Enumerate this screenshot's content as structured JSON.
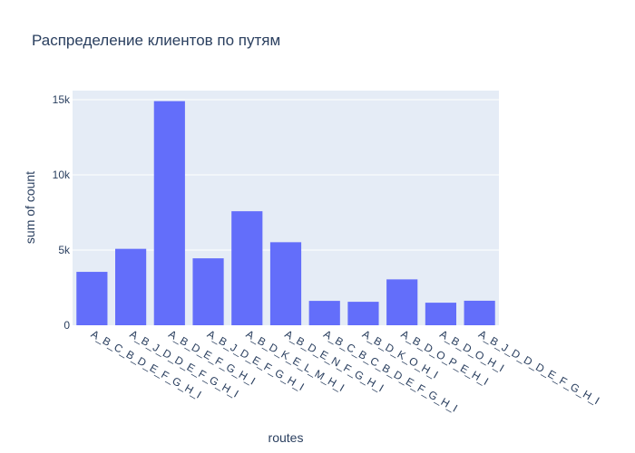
{
  "chart_data": {
    "type": "bar",
    "title": "Распределение клиентов по путям",
    "xlabel": "routes",
    "ylabel": "sum of count",
    "categories": [
      "A_B_C_B_D_E_F_G_H_I",
      "A_B_J_D_D_E_F_G_H_I",
      "A_B_D_E_F_G_H_I",
      "A_B_J_D_E_F_G_H_I",
      "A_B_D_K_E_L_M_H_I",
      "A_B_D_E_N_F_G_H_I",
      "A_B_C_B_C_B_D_E_F_G_H_I",
      "A_B_D_K_O_H_I",
      "A_B_D_O_P_E_H_I",
      "A_B_D_O_H_I",
      "A_B_J_D_D_D_E_F_G_H_I"
    ],
    "values": [
      3550,
      5080,
      14900,
      4450,
      7580,
      5520,
      1620,
      1560,
      3050,
      1500,
      1630
    ],
    "ylim": [
      0,
      15600
    ],
    "yticks": [
      {
        "value": 0,
        "label": "0"
      },
      {
        "value": 5000,
        "label": "5k"
      },
      {
        "value": 10000,
        "label": "10k"
      },
      {
        "value": 15000,
        "label": "15k"
      }
    ],
    "grid": true,
    "colors": {
      "bar": "#636efa",
      "plot_bg": "#e5ecf6",
      "grid": "#ffffff",
      "text": "#2a3f5f"
    }
  }
}
